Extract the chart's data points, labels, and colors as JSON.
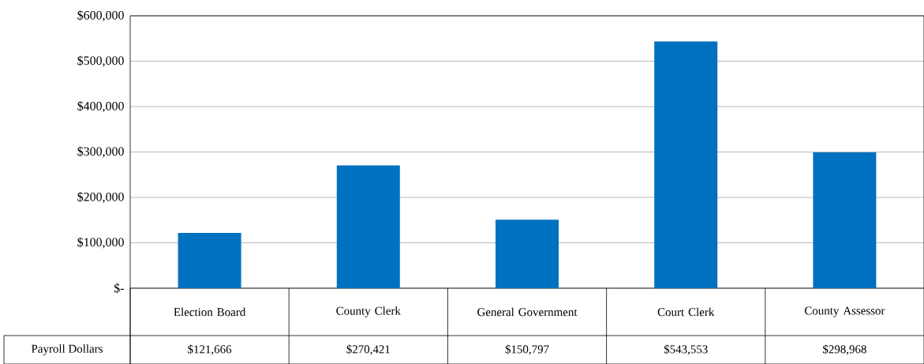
{
  "chart_data": {
    "type": "bar",
    "categories": [
      "Election Board",
      "County Clerk",
      "General Government",
      "Court Clerk",
      "County Assessor"
    ],
    "series": [
      {
        "name": "Payroll Dollars",
        "color": "#0070c0",
        "values": [
          121666,
          270421,
          150797,
          543553,
          298968
        ],
        "value_labels": [
          "$121,666",
          "$270,421",
          "$150,797",
          "$543,553",
          "$298,968"
        ]
      }
    ],
    "ylim": [
      0,
      600000
    ],
    "yticks": [
      {
        "value": 0,
        "label": "$-"
      },
      {
        "value": 100000,
        "label": "$100,000"
      },
      {
        "value": 200000,
        "label": "$200,000"
      },
      {
        "value": 300000,
        "label": "$300,000"
      },
      {
        "value": 400000,
        "label": "$400,000"
      },
      {
        "value": 500000,
        "label": "$500,000"
      },
      {
        "value": 600000,
        "label": "$600,000"
      }
    ],
    "grid": "y"
  }
}
